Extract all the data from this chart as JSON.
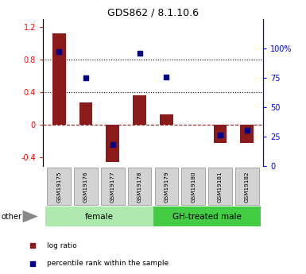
{
  "title": "GDS862 / 8.1.10.6",
  "samples": [
    "GSM19175",
    "GSM19176",
    "GSM19177",
    "GSM19178",
    "GSM19179",
    "GSM19180",
    "GSM19181",
    "GSM19182"
  ],
  "log_ratio": [
    1.13,
    0.28,
    -0.45,
    0.37,
    0.13,
    0.0,
    -0.22,
    -0.22
  ],
  "percentile_rank": [
    97,
    75,
    18,
    96,
    76,
    null,
    26,
    30
  ],
  "left_ylim": [
    -0.5,
    1.3
  ],
  "left_yticks": [
    -0.4,
    0.0,
    0.4,
    0.8,
    1.2
  ],
  "right_ylim": [
    0,
    125
  ],
  "right_yticks": [
    0,
    25,
    50,
    75,
    100
  ],
  "right_yticklabels": [
    "0",
    "25",
    "50",
    "75",
    "100%"
  ],
  "bar_color": "#8B1A1A",
  "dot_color": "#00008B",
  "hline_color": "#8B1A1A",
  "dotline_values": [
    0.4,
    0.8
  ],
  "groups": [
    {
      "label": "female",
      "indices": [
        0,
        1,
        2,
        3
      ],
      "color": "#AEEAAE"
    },
    {
      "label": "GH-treated male",
      "indices": [
        4,
        5,
        6,
        7
      ],
      "color": "#44CC44"
    }
  ],
  "other_label": "other",
  "legend_items": [
    {
      "label": "log ratio",
      "color": "#8B1A1A"
    },
    {
      "label": "percentile rank within the sample",
      "color": "#00008B"
    }
  ]
}
